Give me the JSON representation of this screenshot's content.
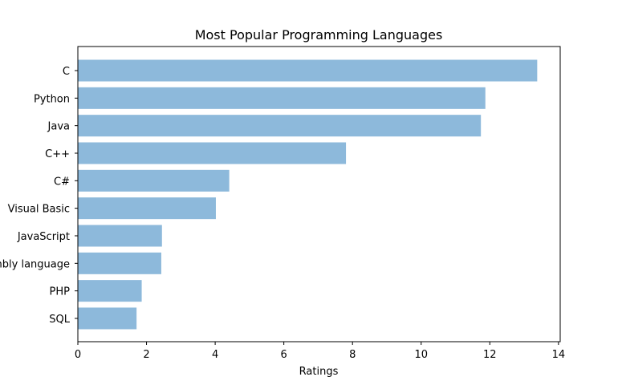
{
  "chart_data": {
    "type": "bar",
    "orientation": "horizontal",
    "title": "Most Popular Programming Languages",
    "xlabel": "Ratings",
    "ylabel": "",
    "categories": [
      "C",
      "Python",
      "Java",
      "C++",
      "C#",
      "Visual Basic",
      "JavaScript",
      "Assembly language",
      "PHP",
      "SQL"
    ],
    "values": [
      13.38,
      11.87,
      11.74,
      7.81,
      4.41,
      4.02,
      2.45,
      2.43,
      1.86,
      1.71
    ],
    "xlim": [
      0,
      14.05
    ],
    "xticks": [
      0,
      2,
      4,
      6,
      8,
      10,
      12,
      14
    ],
    "grid": false,
    "bar_color": "#8db9db"
  }
}
